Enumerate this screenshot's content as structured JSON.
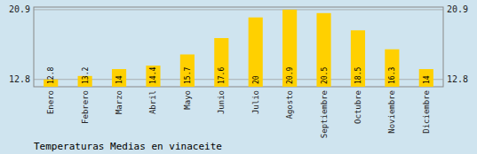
{
  "chart_data": {
    "type": "bar",
    "title": "Temperaturas Medias en vinaceite",
    "categories": [
      "Enero",
      "Febrero",
      "Marzo",
      "Abril",
      "Mayo",
      "Junio",
      "Julio",
      "Agosto",
      "Septiembre",
      "Octubre",
      "Noviembre",
      "Diciembre"
    ],
    "values": [
      12.8,
      13.2,
      14.0,
      14.4,
      15.7,
      17.6,
      20.0,
      20.9,
      20.5,
      18.5,
      16.3,
      14.0
    ],
    "color": "#FFD000",
    "ylim": [
      11.95,
      21.2
    ],
    "yticks": [
      20.9,
      12.8
    ],
    "grid": true,
    "data_labels": true
  }
}
